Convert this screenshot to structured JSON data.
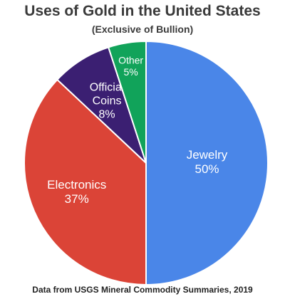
{
  "title": "Uses of Gold in the United States",
  "subtitle": "(Exclusive of Bullion)",
  "footer": "Data from USGS Mineral Commodity Summaries, 2019",
  "chart_data": {
    "type": "pie",
    "start": "top",
    "direction": "clockwise",
    "slices": [
      {
        "name": "Jewelry",
        "label_lines": [
          "Jewelry",
          "50%"
        ],
        "value": 50,
        "color": "#4a86e8"
      },
      {
        "name": "Electronics",
        "label_lines": [
          "Electronics",
          "37%"
        ],
        "value": 37,
        "color": "#db4437"
      },
      {
        "name": "Official Coins",
        "label_lines": [
          "Official",
          "Coins",
          "8%"
        ],
        "value": 8,
        "color": "#3b1f72"
      },
      {
        "name": "Other",
        "label_lines": [
          "Other",
          "5%"
        ],
        "value": 5,
        "color": "#11a35a"
      }
    ]
  }
}
